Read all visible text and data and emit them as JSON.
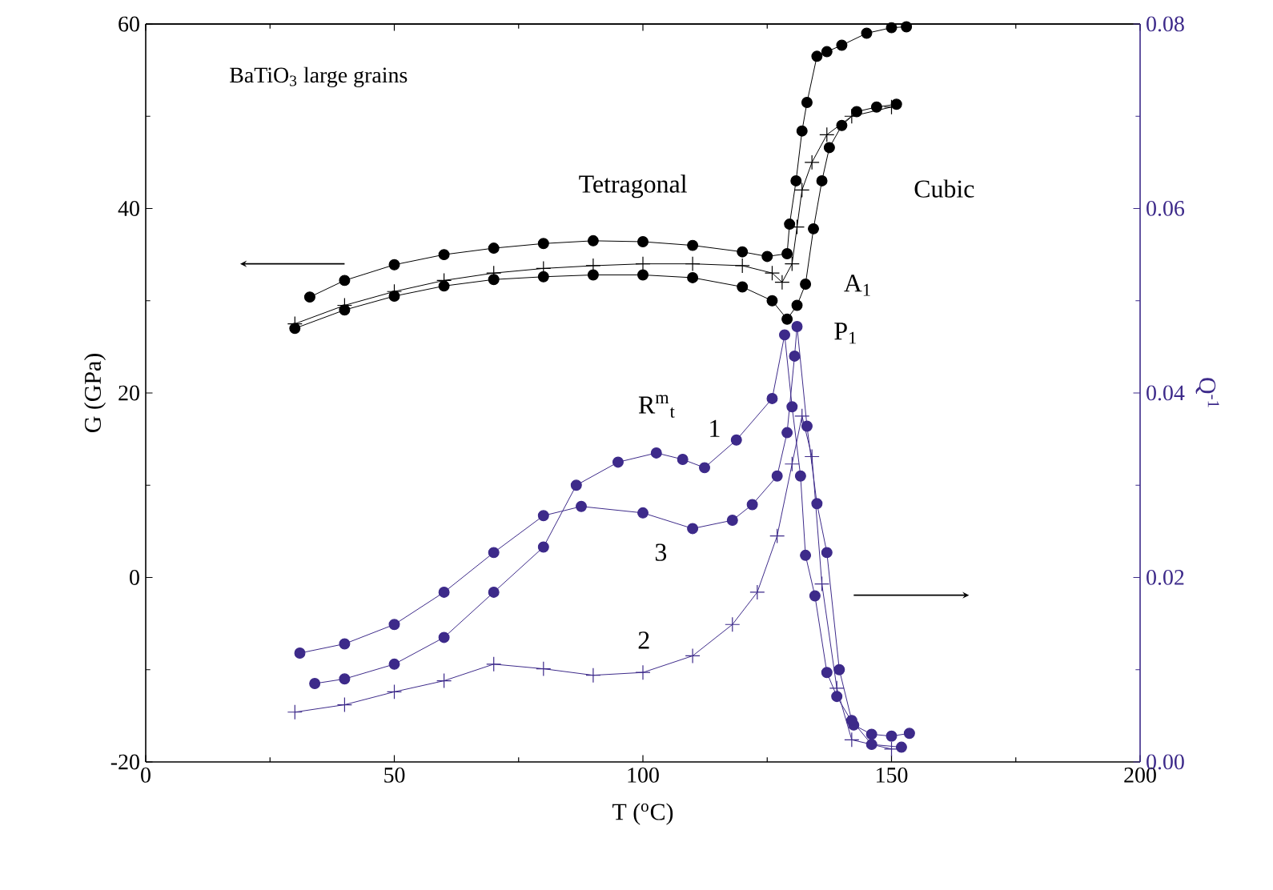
{
  "chart_data": {
    "type": "line",
    "xlabel": "T ($^{o}$C)",
    "ylabel": "G (GPa)",
    "y2label": "Q$^{-1}$",
    "xlim": [
      0,
      200
    ],
    "xticks": [
      0,
      50,
      100,
      150,
      200
    ],
    "ylim": [
      -20,
      60
    ],
    "yticks": [
      -20,
      0,
      20,
      40,
      60
    ],
    "y2lim": [
      0,
      0.08
    ],
    "y2ticks": [
      {
        "value": 0,
        "label": "0.00"
      },
      {
        "value": 0.02,
        "label": "0.02"
      },
      {
        "value": 0.04,
        "label": "0.04"
      },
      {
        "value": 0.06,
        "label": "0.06"
      },
      {
        "value": 0.08,
        "label": "0.08"
      }
    ],
    "grid": false,
    "line_style": "solid",
    "annotations": [
      "BaTiO$_{3}$ large grains",
      "Tetragonal",
      "Cubic",
      "A$_{1}$",
      "P$_{1}$",
      "R$^{m}$$_{t}$"
    ],
    "series": [
      {
        "color": "#000000",
        "marker": "circle",
        "x": [
          33,
          40,
          50,
          60,
          70,
          80,
          90,
          100,
          110,
          120,
          125,
          129,
          129.5,
          130.8,
          132,
          133,
          135,
          137,
          140,
          145,
          150,
          153
        ],
        "values": [
          30.4,
          32.2,
          33.9,
          35,
          35.7,
          36.2,
          36.5,
          36.4,
          36,
          35.3,
          34.8,
          35.1,
          38.3,
          43,
          48.4,
          51.5,
          56.5,
          57,
          57.7,
          59,
          59.6,
          59.7
        ]
      },
      {
        "color": "#000000",
        "marker": "cross",
        "x": [
          30,
          40,
          50,
          60,
          70,
          80,
          90,
          100,
          110,
          120,
          126,
          128,
          130,
          131,
          132,
          134,
          137,
          142,
          150
        ],
        "values": [
          27.5,
          29.5,
          31,
          32.2,
          33,
          33.5,
          33.8,
          34,
          34,
          33.8,
          33,
          32,
          34,
          38,
          42,
          45,
          48,
          50,
          51
        ]
      },
      {
        "color": "#000000",
        "marker": "circle",
        "x": [
          30,
          40,
          50,
          60,
          70,
          80,
          90,
          100,
          110,
          120,
          126,
          129,
          131,
          132.7,
          134.3,
          136,
          137.5,
          140,
          143,
          147,
          151
        ],
        "values": [
          27,
          29,
          30.5,
          31.6,
          32.3,
          32.6,
          32.8,
          32.8,
          32.5,
          31.5,
          30,
          28,
          29.5,
          31.8,
          37.8,
          43,
          46.6,
          49,
          50.5,
          51,
          51.3
        ]
      },
      {
        "name": "1",
        "axis": "y2",
        "color": "#3d2a8a",
        "marker": "circle",
        "x": [
          34,
          40,
          50,
          60,
          70,
          80,
          86.6,
          95,
          102.7,
          108,
          112.4,
          118.8,
          126,
          128.5,
          130,
          131.7,
          132.7,
          134.6,
          137,
          139,
          142.4,
          146,
          150,
          153.6
        ],
        "values": [
          0.0085,
          0.009,
          0.0106,
          0.0135,
          0.0184,
          0.0233,
          0.03,
          0.0325,
          0.0335,
          0.0328,
          0.0319,
          0.0349,
          0.0394,
          0.0463,
          0.0385,
          0.031,
          0.0224,
          0.018,
          0.0097,
          0.0071,
          0.004,
          0.003,
          0.0028,
          0.0031
        ]
      },
      {
        "name": "2",
        "axis": "y2",
        "color": "#3d2a8a",
        "marker": "cross",
        "x": [
          30,
          40,
          50,
          60,
          70,
          80,
          90,
          100,
          110,
          118,
          123,
          127,
          130,
          132,
          134,
          136,
          139,
          142,
          150
        ],
        "values": [
          0.0054,
          0.0062,
          0.0076,
          0.0088,
          0.0106,
          0.0101,
          0.0094,
          0.0097,
          0.0115,
          0.0149,
          0.0184,
          0.0245,
          0.0323,
          0.0375,
          0.0331,
          0.0193,
          0.008,
          0.0024,
          0.0014
        ]
      },
      {
        "name": "3",
        "axis": "y2",
        "color": "#3d2a8a",
        "marker": "circle",
        "x": [
          31,
          40,
          50,
          60,
          70,
          80,
          87.6,
          100,
          110,
          118,
          122,
          127,
          129,
          130.5,
          131,
          133,
          135,
          137,
          139.5,
          142,
          146,
          152
        ],
        "values": [
          0.0118,
          0.0128,
          0.0149,
          0.0184,
          0.0227,
          0.0267,
          0.0277,
          0.027,
          0.0253,
          0.0262,
          0.0279,
          0.031,
          0.0357,
          0.044,
          0.0472,
          0.0364,
          0.028,
          0.0227,
          0.01,
          0.0045,
          0.0019,
          0.0016
        ]
      }
    ]
  }
}
